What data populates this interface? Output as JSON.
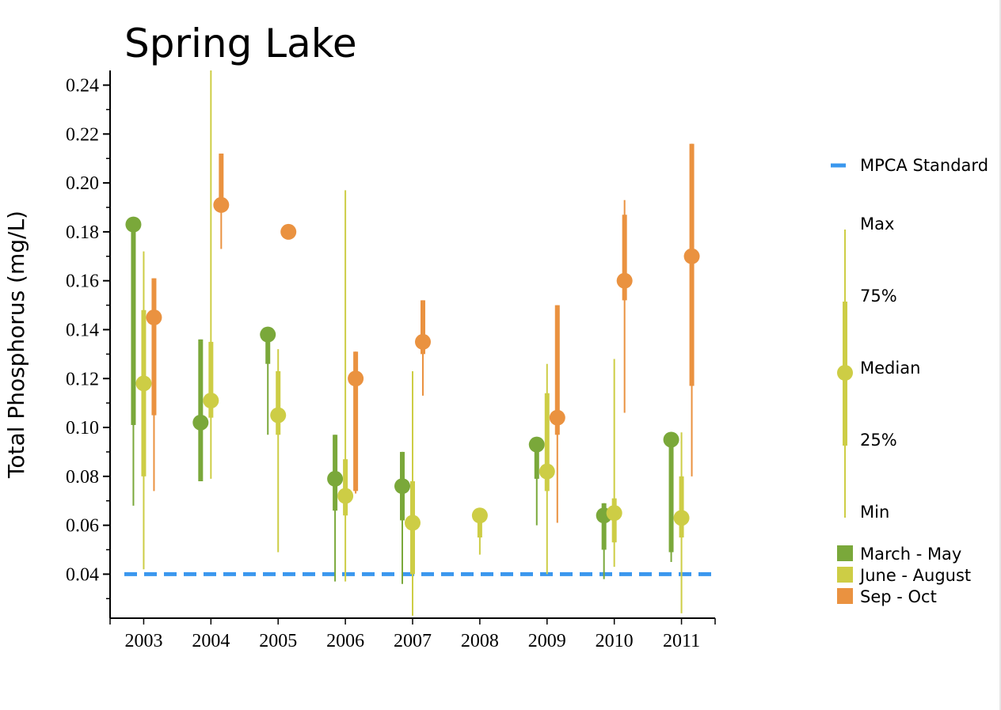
{
  "chart_data": {
    "type": "scatter",
    "title": "Spring Lake",
    "ylabel": "Total Phosphorus (mg/L)",
    "xlabel": "",
    "categories": [
      "2003",
      "2004",
      "2005",
      "2006",
      "2007",
      "2008",
      "2009",
      "2010",
      "2011"
    ],
    "ylim": [
      0.022,
      0.246
    ],
    "yticks": [
      "0.04",
      "0.06",
      "0.08",
      "0.10",
      "0.12",
      "0.14",
      "0.16",
      "0.18",
      "0.20",
      "0.22",
      "0.24"
    ],
    "grid": false,
    "standard": {
      "name": "MPCA Standard",
      "value": 0.04,
      "color": "#3a97ee"
    },
    "series": [
      {
        "name": "March - May",
        "color": "#7aa83a",
        "points": [
          {
            "year": "2003",
            "min": 0.068,
            "q1": 0.101,
            "median": 0.183,
            "q3": 0.183,
            "max": 0.183
          },
          {
            "year": "2004",
            "min": 0.078,
            "q1": 0.078,
            "median": 0.102,
            "q3": 0.136,
            "max": 0.136
          },
          {
            "year": "2005",
            "min": 0.097,
            "q1": 0.126,
            "median": 0.138,
            "q3": 0.138,
            "max": 0.138
          },
          {
            "year": "2006",
            "min": 0.037,
            "q1": 0.066,
            "median": 0.079,
            "q3": 0.097,
            "max": 0.097
          },
          {
            "year": "2007",
            "min": 0.036,
            "q1": 0.062,
            "median": 0.076,
            "q3": 0.09,
            "max": 0.09
          },
          {
            "year": "2009",
            "min": 0.06,
            "q1": 0.079,
            "median": 0.093,
            "q3": 0.093,
            "max": 0.093
          },
          {
            "year": "2010",
            "min": 0.038,
            "q1": 0.05,
            "median": 0.064,
            "q3": 0.069,
            "max": 0.069
          },
          {
            "year": "2011",
            "min": 0.045,
            "q1": 0.049,
            "median": 0.095,
            "q3": 0.095,
            "max": 0.095
          }
        ]
      },
      {
        "name": "June - August",
        "color": "#cdcd45",
        "points": [
          {
            "year": "2003",
            "min": 0.042,
            "q1": 0.08,
            "median": 0.118,
            "q3": 0.148,
            "max": 0.172
          },
          {
            "year": "2004",
            "min": 0.079,
            "q1": 0.104,
            "median": 0.111,
            "q3": 0.135,
            "max": 0.246
          },
          {
            "year": "2005",
            "min": 0.049,
            "q1": 0.097,
            "median": 0.105,
            "q3": 0.123,
            "max": 0.132
          },
          {
            "year": "2006",
            "min": 0.037,
            "q1": 0.064,
            "median": 0.072,
            "q3": 0.087,
            "max": 0.197
          },
          {
            "year": "2007",
            "min": 0.023,
            "q1": 0.04,
            "median": 0.061,
            "q3": 0.078,
            "max": 0.123
          },
          {
            "year": "2008",
            "min": 0.048,
            "q1": 0.055,
            "median": 0.064,
            "q3": 0.064,
            "max": 0.064
          },
          {
            "year": "2009",
            "min": 0.04,
            "q1": 0.074,
            "median": 0.082,
            "q3": 0.114,
            "max": 0.126
          },
          {
            "year": "2010",
            "min": 0.043,
            "q1": 0.053,
            "median": 0.065,
            "q3": 0.071,
            "max": 0.128
          },
          {
            "year": "2011",
            "min": 0.024,
            "q1": 0.055,
            "median": 0.063,
            "q3": 0.08,
            "max": 0.098
          }
        ]
      },
      {
        "name": "Sep - Oct",
        "color": "#ea9240",
        "points": [
          {
            "year": "2003",
            "min": 0.074,
            "q1": 0.105,
            "median": 0.145,
            "q3": 0.161,
            "max": 0.161
          },
          {
            "year": "2004",
            "min": 0.173,
            "q1": 0.191,
            "median": 0.191,
            "q3": 0.212,
            "max": 0.212
          },
          {
            "year": "2005",
            "min": 0.18,
            "q1": 0.18,
            "median": 0.18,
            "q3": 0.18,
            "max": 0.18
          },
          {
            "year": "2006",
            "min": 0.073,
            "q1": 0.074,
            "median": 0.12,
            "q3": 0.131,
            "max": 0.131
          },
          {
            "year": "2007",
            "min": 0.113,
            "q1": 0.13,
            "median": 0.135,
            "q3": 0.152,
            "max": 0.152
          },
          {
            "year": "2009",
            "min": 0.061,
            "q1": 0.097,
            "median": 0.104,
            "q3": 0.15,
            "max": 0.15
          },
          {
            "year": "2010",
            "min": 0.106,
            "q1": 0.152,
            "median": 0.16,
            "q3": 0.187,
            "max": 0.193
          },
          {
            "year": "2011",
            "min": 0.08,
            "q1": 0.117,
            "median": 0.17,
            "q3": 0.216,
            "max": 0.216
          }
        ]
      }
    ],
    "legend": {
      "placement": "right",
      "stat_labels": [
        "Max",
        "75%",
        "Median",
        "25%",
        "Min"
      ],
      "example_color": "#cdcd45"
    }
  }
}
